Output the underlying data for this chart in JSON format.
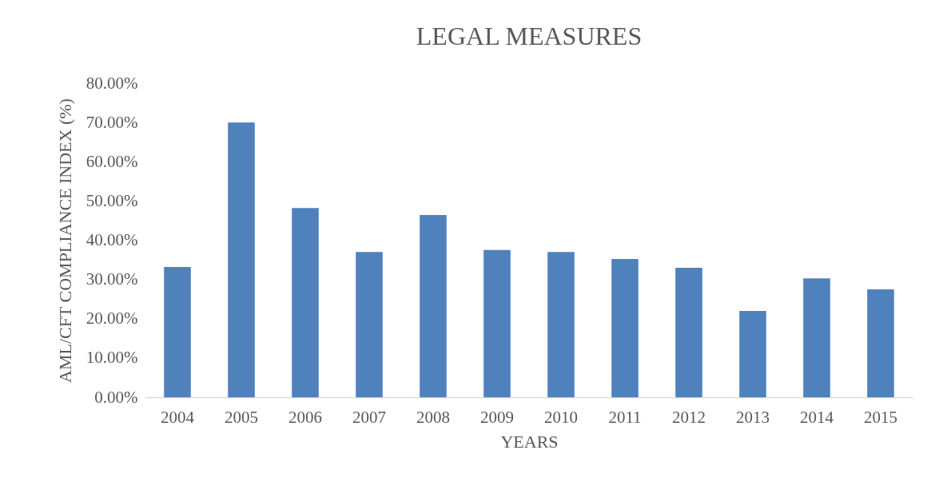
{
  "chart_data": {
    "type": "bar",
    "title": "LEGAL MEASURES",
    "xlabel": "YEARS",
    "ylabel": "AML/CFT COMPLIANCE INDEX (%)",
    "categories": [
      "2004",
      "2005",
      "2006",
      "2007",
      "2008",
      "2009",
      "2010",
      "2011",
      "2012",
      "2013",
      "2014",
      "2015"
    ],
    "values": [
      33.2,
      70.0,
      48.2,
      37.0,
      46.4,
      37.5,
      37.0,
      35.2,
      33.0,
      22.0,
      30.3,
      27.5
    ],
    "color": "#4f81bd",
    "ylim": [
      0,
      80
    ],
    "yticks": [
      {
        "value": 0,
        "label": "0.00%"
      },
      {
        "value": 10,
        "label": "10.00%"
      },
      {
        "value": 20,
        "label": "20.00%"
      },
      {
        "value": 30,
        "label": "30.00%"
      },
      {
        "value": 40,
        "label": "40.00%"
      },
      {
        "value": 50,
        "label": "50.00%"
      },
      {
        "value": 60,
        "label": "60.00%"
      },
      {
        "value": 70,
        "label": "70.00%"
      },
      {
        "value": 80,
        "label": "80.00%"
      }
    ],
    "grid": false
  }
}
